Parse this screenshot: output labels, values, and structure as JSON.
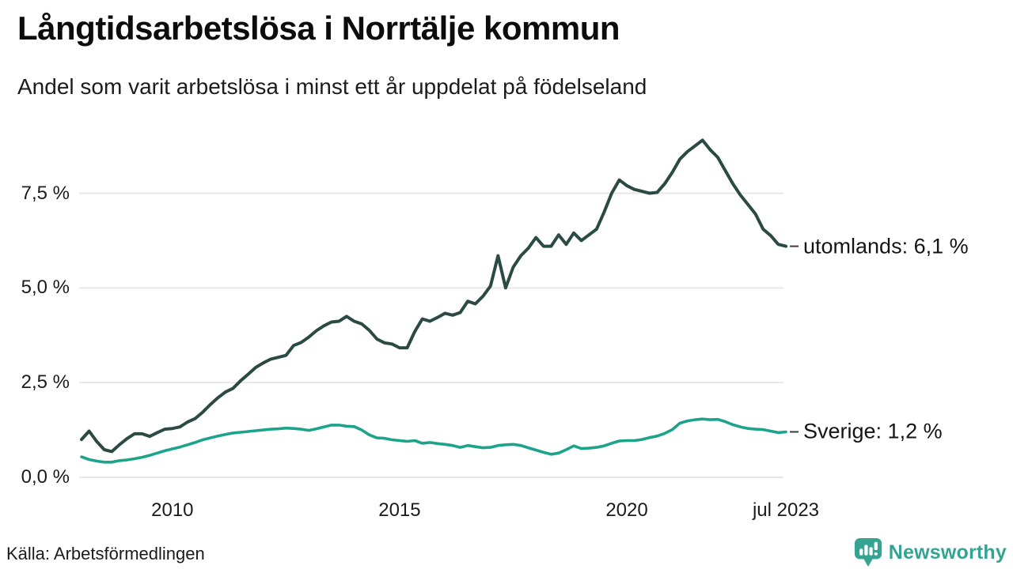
{
  "header": {
    "title": "Långtidsarbetslösa i Norrtälje kommun",
    "subtitle": "Andel som varit arbetslösa i minst ett år uppdelat på födelseland"
  },
  "footer": {
    "source": "Källa: Arbetsförmedlingen",
    "brand": "Newsworthy"
  },
  "colors": {
    "grid": "#e7e7e7",
    "tick_dash": "#3a3a3a",
    "text": "#161616",
    "utomlands_line": "#2b4a43",
    "sverige_line": "#1ca38b",
    "brand_teal": "#35a392"
  },
  "chart_data": {
    "type": "line",
    "title": "Långtidsarbetslösa i Norrtälje kommun",
    "subtitle": "Andel som varit arbetslösa i minst ett år uppdelat på födelseland",
    "unit": "%",
    "grid": true,
    "legend_position": "end-labels-right",
    "xlim": [
      2008.0,
      2023.5
    ],
    "ylim": [
      0,
      9.2
    ],
    "x_start": 2008.0,
    "x_step_years": 0.1666667,
    "x_note": "monthly-resolution share of labour force unemployed >= 1 year, sampled every 2 months, Jan 2008 - Jul 2023",
    "yticks": [
      {
        "label": "0,0 %",
        "value": 0
      },
      {
        "label": "2,5 %",
        "value": 2.5
      },
      {
        "label": "5,0 %",
        "value": 5
      },
      {
        "label": "7,5 %",
        "value": 7.5
      }
    ],
    "xticks": [
      {
        "label": "2010",
        "value": 2010
      },
      {
        "label": "2015",
        "value": 2015
      },
      {
        "label": "2020",
        "value": 2020
      },
      {
        "label": "jul 2023",
        "value": 2023.5
      }
    ],
    "series": [
      {
        "name": "utomlands",
        "end_label": "utomlands: 6,1 %",
        "final_value_label": "6,1 %",
        "color": "#2b4a43",
        "values": [
          1.0,
          1.22,
          0.95,
          0.73,
          0.68,
          0.86,
          1.02,
          1.15,
          1.15,
          1.08,
          1.18,
          1.27,
          1.29,
          1.33,
          1.46,
          1.55,
          1.72,
          1.92,
          2.1,
          2.25,
          2.35,
          2.55,
          2.72,
          2.9,
          3.02,
          3.12,
          3.17,
          3.22,
          3.48,
          3.56,
          3.7,
          3.87,
          4.0,
          4.1,
          4.12,
          4.25,
          4.12,
          4.05,
          3.88,
          3.65,
          3.55,
          3.52,
          3.42,
          3.42,
          3.85,
          4.18,
          4.12,
          4.22,
          4.33,
          4.28,
          4.35,
          4.65,
          4.58,
          4.78,
          5.05,
          5.85,
          5.0,
          5.55,
          5.85,
          6.05,
          6.33,
          6.1,
          6.1,
          6.4,
          6.15,
          6.45,
          6.25,
          6.4,
          6.55,
          7.0,
          7.5,
          7.85,
          7.7,
          7.6,
          7.55,
          7.5,
          7.52,
          7.75,
          8.05,
          8.4,
          8.6,
          8.75,
          8.9,
          8.65,
          8.45,
          8.1,
          7.75,
          7.45,
          7.2,
          6.95,
          6.55,
          6.38,
          6.15,
          6.1
        ]
      },
      {
        "name": "Sverige",
        "end_label": "Sverige: 1,2 %",
        "final_value_label": "1,2 %",
        "color": "#1ca38b",
        "values": [
          0.54,
          0.47,
          0.43,
          0.4,
          0.4,
          0.44,
          0.46,
          0.49,
          0.53,
          0.58,
          0.64,
          0.7,
          0.75,
          0.8,
          0.86,
          0.92,
          0.99,
          1.04,
          1.09,
          1.13,
          1.17,
          1.19,
          1.21,
          1.23,
          1.25,
          1.27,
          1.28,
          1.3,
          1.29,
          1.27,
          1.24,
          1.28,
          1.33,
          1.38,
          1.38,
          1.35,
          1.34,
          1.25,
          1.12,
          1.04,
          1.03,
          0.99,
          0.97,
          0.95,
          0.97,
          0.9,
          0.92,
          0.89,
          0.87,
          0.84,
          0.79,
          0.84,
          0.81,
          0.78,
          0.79,
          0.84,
          0.86,
          0.87,
          0.84,
          0.78,
          0.72,
          0.66,
          0.61,
          0.64,
          0.73,
          0.83,
          0.76,
          0.77,
          0.79,
          0.83,
          0.9,
          0.96,
          0.97,
          0.97,
          1.0,
          1.05,
          1.09,
          1.16,
          1.26,
          1.43,
          1.49,
          1.52,
          1.54,
          1.52,
          1.53,
          1.47,
          1.39,
          1.33,
          1.29,
          1.27,
          1.26,
          1.22,
          1.18,
          1.2
        ]
      }
    ]
  }
}
